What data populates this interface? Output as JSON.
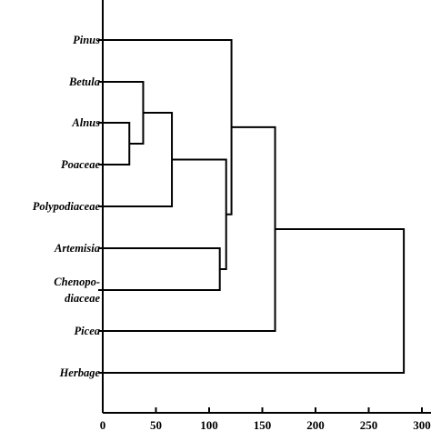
{
  "chart_data": {
    "type": "dendrogram",
    "title": "",
    "xlabel": "",
    "ylabel": "",
    "xlim": [
      0,
      300
    ],
    "x_ticks": [
      "0",
      "50",
      "100",
      "150",
      "200",
      "250",
      "300"
    ],
    "leaves": [
      {
        "id": "pinus",
        "label": [
          "Pinus"
        ]
      },
      {
        "id": "betula",
        "label": [
          "Betula"
        ]
      },
      {
        "id": "alnus",
        "label": [
          "Alnus"
        ]
      },
      {
        "id": "poaceae",
        "label": [
          "Poaceae"
        ]
      },
      {
        "id": "polypodiaceae",
        "label": [
          "Polypodiaceae"
        ]
      },
      {
        "id": "artemisia",
        "label": [
          "Artemisia"
        ]
      },
      {
        "id": "chenopodiaceae",
        "label": [
          "Chenopo-",
          "diaceae"
        ]
      },
      {
        "id": "picea",
        "label": [
          "Picea"
        ]
      },
      {
        "id": "herbage",
        "label": [
          "Herbage"
        ]
      }
    ],
    "merges": [
      {
        "id": "m1",
        "left": "alnus",
        "right": "poaceae",
        "distance": 25
      },
      {
        "id": "m2",
        "left": "betula",
        "right": "m1",
        "distance": 38
      },
      {
        "id": "m3",
        "left": "m2",
        "right": "polypodiaceae",
        "distance": 65
      },
      {
        "id": "m4",
        "left": "artemisia",
        "right": "chenopodiaceae",
        "distance": 110
      },
      {
        "id": "m5",
        "left": "m3",
        "right": "m4",
        "distance": 116
      },
      {
        "id": "m6",
        "left": "pinus",
        "right": "m5",
        "distance": 121
      },
      {
        "id": "m7",
        "left": "m6",
        "right": "picea",
        "distance": 162
      },
      {
        "id": "m8",
        "left": "m7",
        "right": "herbage",
        "distance": 283
      }
    ]
  }
}
